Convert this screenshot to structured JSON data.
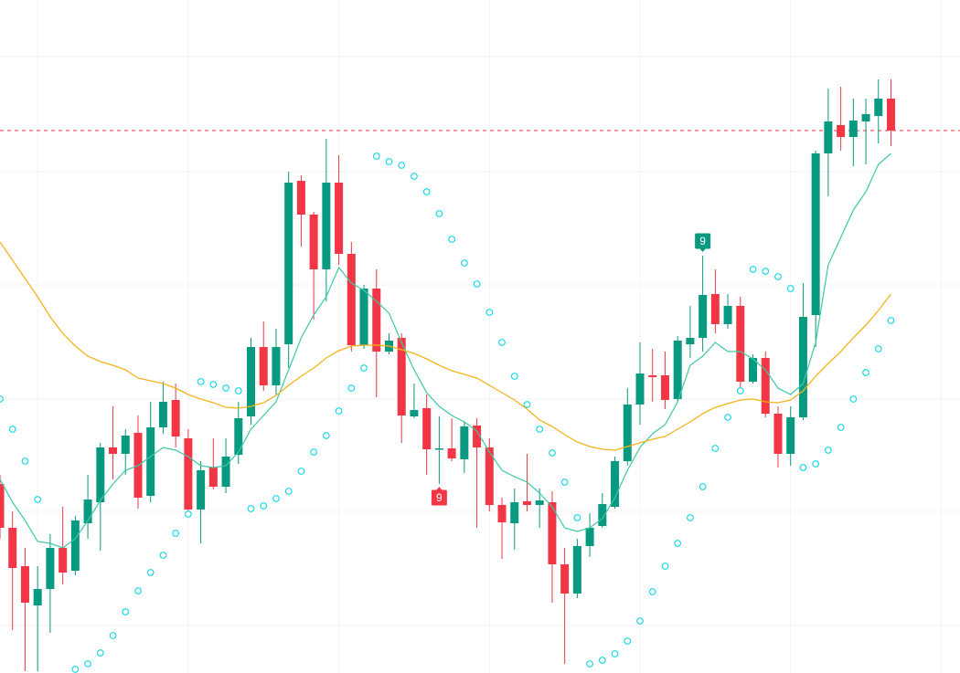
{
  "chart_data": {
    "type": "candlestick",
    "up_color": "#089981",
    "down_color": "#f23645",
    "x": [
      0,
      1,
      2,
      3,
      4,
      5,
      6,
      7,
      8,
      9,
      10,
      11,
      12,
      13,
      14,
      15,
      16,
      17,
      18,
      19,
      20,
      21,
      22,
      23,
      24,
      25,
      26,
      27,
      28,
      29,
      30,
      31,
      32,
      33,
      34,
      35,
      36,
      37,
      38,
      39,
      40,
      41,
      42,
      43,
      44,
      45,
      46,
      47,
      48,
      49,
      50,
      51,
      52,
      53,
      54,
      55,
      56,
      57,
      58,
      59,
      60,
      61,
      62,
      63,
      64,
      65,
      66,
      67,
      68,
      69,
      70,
      71
    ],
    "open": [
      207,
      159,
      117,
      74,
      92,
      137,
      112,
      164,
      187,
      247,
      240,
      263,
      194,
      269,
      299,
      257,
      179,
      225,
      204,
      239,
      281,
      357,
      315,
      360,
      539,
      502,
      442,
      537,
      459,
      359,
      421,
      352,
      367,
      281,
      290,
      245,
      246,
      234,
      271,
      247,
      184,
      164,
      188,
      184,
      187,
      119,
      87,
      139,
      161,
      182,
      232,
      294,
      326,
      326,
      300,
      360,
      367,
      415,
      382,
      402,
      319,
      345,
      284,
      240,
      280,
      392,
      569,
      600,
      587,
      604,
      610,
      629
    ],
    "high": [
      217,
      177,
      137,
      117,
      152,
      182,
      172,
      217,
      252,
      292,
      267,
      282,
      297,
      319,
      317,
      267,
      232,
      257,
      257,
      297,
      367,
      385,
      377,
      549,
      545,
      505,
      585,
      567,
      472,
      425,
      442,
      372,
      372,
      317,
      305,
      281,
      279,
      275,
      279,
      257,
      192,
      202,
      240,
      202,
      199,
      137,
      147,
      175,
      197,
      237,
      312,
      362,
      355,
      352,
      369,
      402,
      457,
      442,
      415,
      412,
      349,
      352,
      292,
      292,
      427,
      572,
      640,
      642,
      629,
      629,
      650,
      650
    ],
    "low": [
      147,
      47,
      2,
      2,
      44,
      97,
      107,
      147,
      134,
      212,
      217,
      180,
      187,
      262,
      247,
      172,
      142,
      201,
      197,
      229,
      272,
      309,
      305,
      334,
      467,
      387,
      407,
      447,
      352,
      355,
      302,
      349,
      252,
      279,
      217,
      207,
      232,
      219,
      159,
      177,
      125,
      135,
      177,
      159,
      77,
      10,
      82,
      127,
      159,
      180,
      227,
      272,
      297,
      289,
      297,
      345,
      352,
      372,
      377,
      307,
      317,
      280,
      225,
      227,
      277,
      357,
      522,
      572,
      555,
      557,
      580,
      577
    ],
    "close": [
      159,
      115,
      77,
      92,
      137,
      110,
      167,
      190,
      247,
      240,
      260,
      192,
      269,
      297,
      259,
      179,
      222,
      204,
      237,
      279,
      357,
      315,
      357,
      537,
      502,
      442,
      537,
      459,
      359,
      421,
      352,
      364,
      282,
      288,
      245,
      246,
      235,
      270,
      247,
      184,
      165,
      187,
      184,
      189,
      119,
      87,
      139,
      159,
      185,
      232,
      294,
      328,
      324,
      299,
      364,
      367,
      414,
      382,
      402,
      319,
      345,
      284,
      240,
      280,
      390,
      569,
      604,
      587,
      605,
      612,
      629,
      594
    ],
    "lines": [
      {
        "color": "#3cc9a6",
        "values": [
          212,
          187,
          167,
          144,
          142,
          137,
          147,
          167,
          189,
          207,
          222,
          227,
          237,
          247,
          244,
          237,
          227,
          225,
          227,
          242,
          267,
          282,
          297,
          332,
          367,
          392,
          412,
          444,
          427,
          419,
          407,
          394,
          362,
          332,
          307,
          292,
          282,
          275,
          265,
          242,
          222,
          215,
          209,
          197,
          182,
          159,
          155,
          159,
          169,
          192,
          222,
          247,
          262,
          272,
          297,
          337,
          347,
          362,
          352,
          352,
          344,
          332,
          312,
          305,
          317,
          362,
          447,
          477,
          507,
          527,
          557,
          569
        ]
      },
      {
        "color": "#f5b31a",
        "values": [
          472,
          452,
          432,
          412,
          390,
          372,
          358,
          347,
          341,
          337,
          332,
          323,
          320,
          317,
          312,
          305,
          300,
          296,
          291,
          290,
          292,
          296,
          304,
          315,
          325,
          334,
          345,
          353,
          358,
          359,
          359,
          358,
          354,
          350,
          344,
          337,
          331,
          327,
          323,
          315,
          307,
          299,
          289,
          277,
          270,
          261,
          253,
          248,
          245,
          244,
          248,
          252,
          256,
          259,
          267,
          275,
          284,
          291,
          295,
          299,
          300,
          297,
          296,
          299,
          309,
          325,
          339,
          352,
          367,
          381,
          397,
          415
        ]
      }
    ],
    "sar": {
      "color": "#19d8ea",
      "values": [
        300,
        267,
        232,
        190,
        null,
        null,
        4,
        10,
        22,
        41,
        67,
        90,
        110,
        129,
        153,
        174,
        319,
        316,
        312,
        309,
        180,
        183,
        191,
        199,
        221,
        242,
        260,
        287,
        312,
        334,
        566,
        560,
        556,
        544,
        527,
        503,
        475,
        449,
        426,
        395,
        362,
        325,
        294,
        267,
        241,
        209,
        170,
        10,
        14,
        21,
        35,
        57,
        89,
        117,
        142,
        170,
        204,
        246,
        280,
        309,
        442,
        440,
        434,
        421,
        225,
        229,
        244,
        269,
        300,
        329,
        355,
        386
      ]
    },
    "price_line": {
      "value": 594,
      "color": "#f23645"
    },
    "annotations": [
      {
        "text": "9",
        "index": 35,
        "position": "below",
        "color": "#f23645"
      },
      {
        "text": "9",
        "index": 56,
        "position": "above",
        "color": "#089981"
      }
    ],
    "xlim": [
      0,
      76.5
    ],
    "ylim": [
      0,
      737
    ],
    "grid": true,
    "grid_x": [
      3,
      15,
      27,
      39,
      51,
      63,
      75
    ],
    "grid_y": [
      52,
      177,
      300,
      425,
      549,
      675
    ]
  }
}
